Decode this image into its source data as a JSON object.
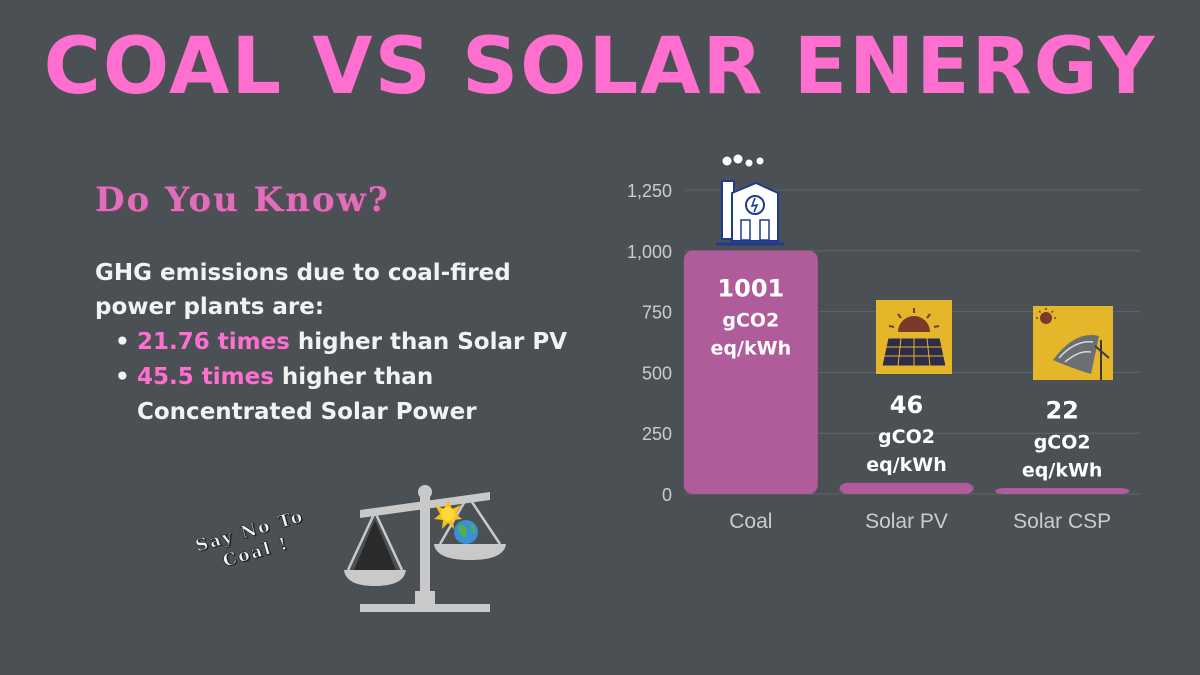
{
  "page": {
    "title": "COAL VS SOLAR ENERGY",
    "subtitle": "Do You Know?",
    "intro": "GHG emissions due to coal-fired power plants are:",
    "bullets": [
      {
        "highlight": "21.76 times",
        "rest": " higher than Solar PV"
      },
      {
        "highlight": "45.5 times",
        "rest": " higher than Concentrated Solar Power"
      }
    ],
    "slogan_line1": "Say No To",
    "slogan_line2": "Coal !"
  },
  "colors": {
    "background": "#4a5053",
    "title": "#ff6fcf",
    "bar": "#b05b9a",
    "panel": "#e5b52a",
    "text": "#f2f2f2"
  },
  "icons": [
    "factory-icon",
    "solar-panel-icon",
    "solar-csp-icon",
    "balance-scale-icon"
  ],
  "chart_data": {
    "type": "bar",
    "categories": [
      "Coal",
      "Solar PV",
      "Solar CSP"
    ],
    "values": [
      1001,
      46,
      22
    ],
    "data_labels": [
      {
        "value": "1001",
        "unit_line1": "gCO2",
        "unit_line2": "eq/kWh"
      },
      {
        "value": "46",
        "unit_line1": "gCO2",
        "unit_line2": "eq/kWh"
      },
      {
        "value": "22",
        "unit_line1": "gCO2",
        "unit_line2": "eq/kWh"
      }
    ],
    "yticks": [
      0,
      250,
      500,
      750,
      1000,
      1250
    ],
    "ytick_labels": [
      "0",
      "250",
      "500",
      "750",
      "1,000",
      "1,250"
    ],
    "ylim": [
      0,
      1250
    ],
    "grid": true,
    "xlabel": "",
    "ylabel": ""
  }
}
